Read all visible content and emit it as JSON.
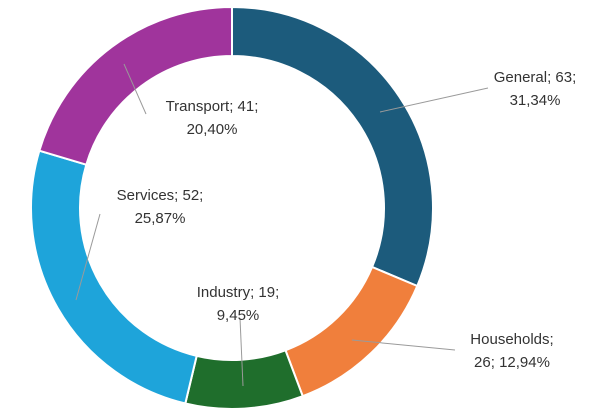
{
  "chart_data": {
    "type": "donut",
    "categories": [
      "General",
      "Households",
      "Industry",
      "Services",
      "Transport"
    ],
    "values": [
      63,
      26,
      19,
      52,
      41
    ],
    "data_labels": [
      [
        "General; 63;",
        "31,34%"
      ],
      [
        "Households;",
        "26; 12,94%"
      ],
      [
        "Industry; 19;",
        "9,45%"
      ],
      [
        "Services; 52;",
        "25,87%"
      ],
      [
        "Transport; 41;",
        "20,40%"
      ]
    ],
    "colors": [
      "#1c5b7c",
      "#f07f3c",
      "#1f6e2c",
      "#1ea4da",
      "#a0349c"
    ]
  }
}
